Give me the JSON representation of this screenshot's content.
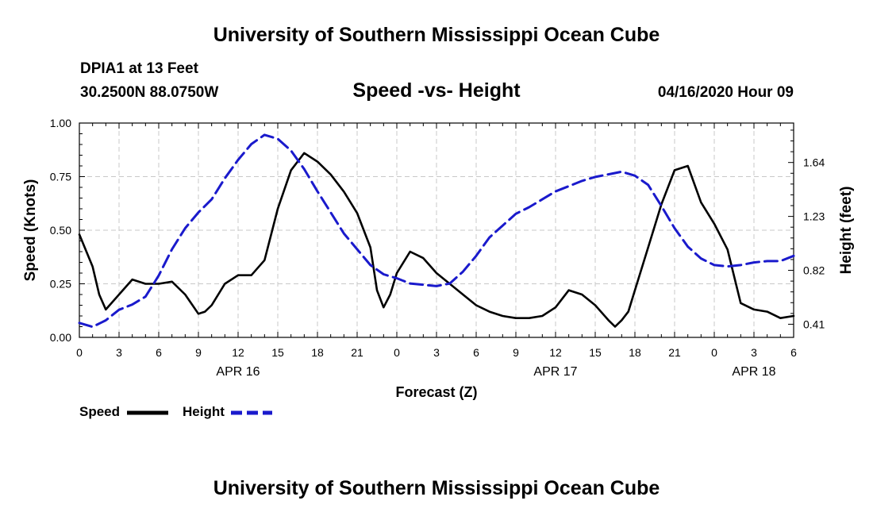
{
  "header": {
    "title": "University of Southern Mississippi Ocean Cube",
    "station": "DPIA1 at 13 Feet",
    "coords": "30.2500N 88.0750W",
    "timestamp": "04/16/2020 Hour 09"
  },
  "footer": {
    "title": "University of Southern Mississippi Ocean Cube"
  },
  "legend": {
    "speed_label": "Speed",
    "height_label": "Height"
  },
  "colors": {
    "speed": "#000000",
    "height": "#1a1acc",
    "grid": "#c8c8c8"
  },
  "chart_data": {
    "type": "line",
    "title": "Speed -vs- Height",
    "xlabel": "Forecast (Z)",
    "ylabel": "Speed (Knots)",
    "y2label": "Height (feet)",
    "xlim": [
      0,
      54
    ],
    "ylim": [
      0,
      1.0
    ],
    "y2lim": [
      0.31,
      1.94
    ],
    "x_ticks": [
      0,
      3,
      6,
      9,
      12,
      15,
      18,
      21,
      24,
      27,
      30,
      33,
      36,
      39,
      42,
      45,
      48,
      51,
      54
    ],
    "x_tick_labels": [
      "0",
      "3",
      "6",
      "9",
      "12",
      "15",
      "18",
      "21",
      "0",
      "3",
      "6",
      "9",
      "12",
      "15",
      "18",
      "21",
      "0",
      "3",
      "6"
    ],
    "date_labels": [
      {
        "x": 12,
        "label": "APR 16"
      },
      {
        "x": 36,
        "label": "APR 17"
      },
      {
        "x": 51,
        "label": "APR 18"
      }
    ],
    "y_ticks": [
      0,
      0.25,
      0.5,
      0.75,
      1.0
    ],
    "y_tick_labels": [
      "0.00",
      "0.25",
      "0.50",
      "0.75",
      "1.00"
    ],
    "y2_ticks": [
      0.41,
      0.82,
      1.23,
      1.64
    ],
    "y2_tick_labels": [
      "0.41",
      "0.82",
      "1.23",
      "1.64"
    ],
    "series": [
      {
        "name": "Speed",
        "axis": "left",
        "style": "solid",
        "x": [
          0,
          1,
          1.5,
          2,
          3,
          4,
          5,
          6,
          7,
          8,
          9,
          9.5,
          10,
          11,
          12,
          13,
          14,
          15,
          16,
          17,
          18,
          19,
          20,
          21,
          22,
          22.5,
          23,
          23.5,
          24,
          25,
          26,
          27,
          28,
          29,
          30,
          31,
          32,
          33,
          34,
          35,
          36,
          37,
          38,
          39,
          40,
          40.5,
          41,
          41.5,
          42,
          43,
          44,
          45,
          46,
          47,
          48,
          49,
          50,
          51,
          52,
          53,
          54
        ],
        "values": [
          0.48,
          0.33,
          0.2,
          0.13,
          0.2,
          0.27,
          0.25,
          0.25,
          0.26,
          0.2,
          0.11,
          0.12,
          0.15,
          0.25,
          0.29,
          0.29,
          0.36,
          0.6,
          0.78,
          0.86,
          0.82,
          0.76,
          0.68,
          0.58,
          0.42,
          0.22,
          0.14,
          0.2,
          0.3,
          0.4,
          0.37,
          0.3,
          0.25,
          0.2,
          0.15,
          0.12,
          0.1,
          0.09,
          0.09,
          0.1,
          0.14,
          0.22,
          0.2,
          0.15,
          0.08,
          0.05,
          0.08,
          0.12,
          0.22,
          0.42,
          0.62,
          0.78,
          0.8,
          0.63,
          0.53,
          0.41,
          0.16,
          0.13,
          0.12,
          0.09,
          0.1
        ]
      },
      {
        "name": "Height",
        "axis": "right",
        "style": "dashed",
        "x": [
          0,
          1,
          2,
          3,
          4,
          5,
          6,
          7,
          8,
          9,
          10,
          11,
          12,
          13,
          14,
          15,
          16,
          17,
          18,
          19,
          20,
          21,
          22,
          23,
          24,
          25,
          26,
          27,
          28,
          29,
          30,
          31,
          32,
          33,
          34,
          35,
          36,
          37,
          38,
          39,
          40,
          41,
          42,
          43,
          44,
          45,
          46,
          47,
          48,
          49,
          50,
          51,
          52,
          53,
          54
        ],
        "values": [
          0.42,
          0.39,
          0.44,
          0.52,
          0.56,
          0.62,
          0.78,
          0.98,
          1.14,
          1.26,
          1.36,
          1.52,
          1.66,
          1.78,
          1.85,
          1.82,
          1.73,
          1.59,
          1.42,
          1.26,
          1.1,
          0.98,
          0.86,
          0.79,
          0.76,
          0.72,
          0.71,
          0.7,
          0.72,
          0.81,
          0.93,
          1.07,
          1.16,
          1.25,
          1.3,
          1.36,
          1.42,
          1.46,
          1.5,
          1.53,
          1.55,
          1.57,
          1.54,
          1.47,
          1.31,
          1.14,
          1.0,
          0.91,
          0.86,
          0.85,
          0.86,
          0.88,
          0.89,
          0.89,
          0.93
        ]
      }
    ]
  }
}
